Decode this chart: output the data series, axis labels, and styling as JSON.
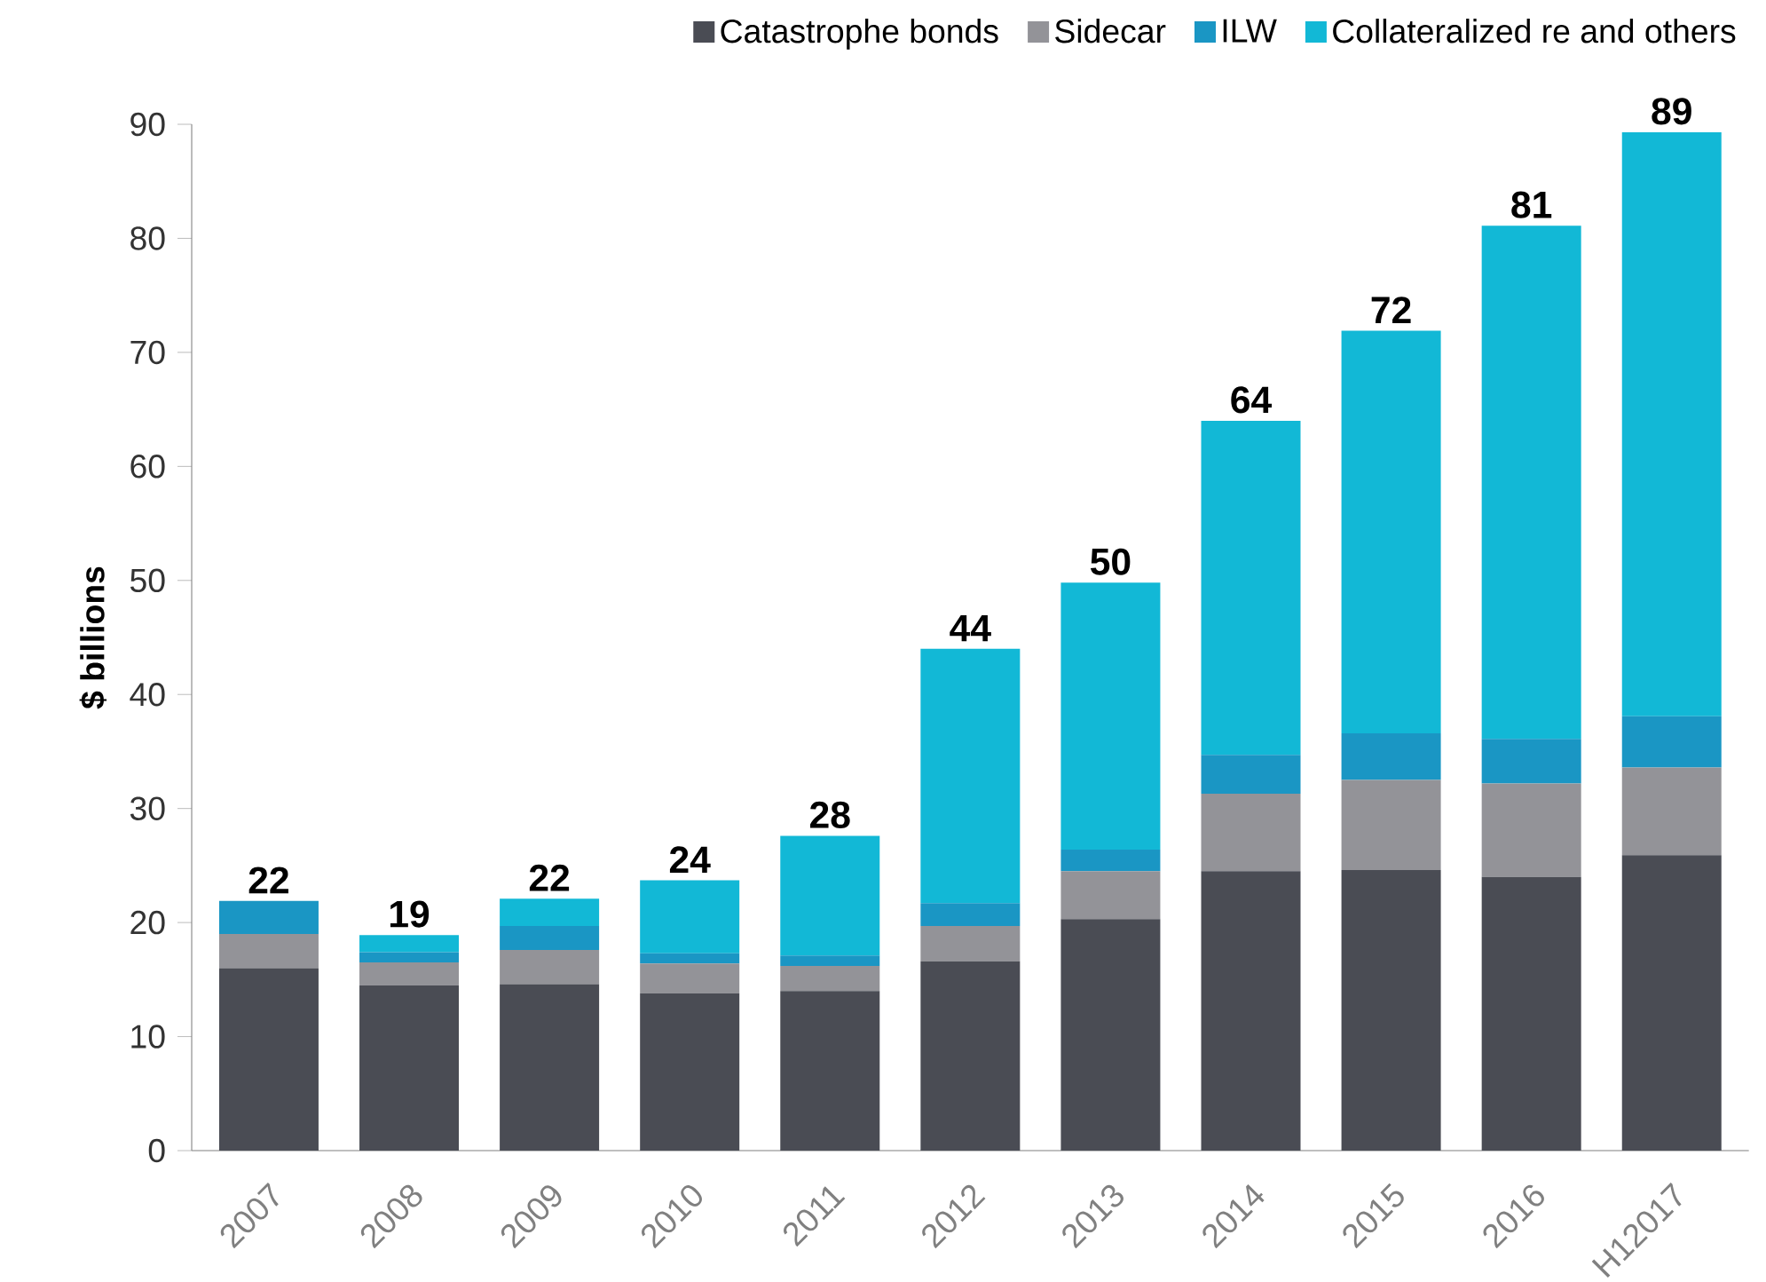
{
  "chart_data": {
    "type": "bar",
    "stacked": true,
    "ylabel": "$ billions",
    "categories": [
      "2007",
      "2008",
      "2009",
      "2010",
      "2011",
      "2012",
      "2013",
      "2014",
      "2015",
      "2016",
      "H12017"
    ],
    "series": [
      {
        "name": "Catastrophe bonds",
        "color": "#4a4c54",
        "values": [
          16.0,
          14.5,
          14.6,
          13.8,
          14.0,
          16.6,
          20.3,
          24.5,
          24.6,
          24.0,
          25.9
        ]
      },
      {
        "name": "Sidecar",
        "color": "#939398",
        "values": [
          3.0,
          2.0,
          3.0,
          2.6,
          2.2,
          3.1,
          4.2,
          6.8,
          7.9,
          8.2,
          7.7
        ]
      },
      {
        "name": "ILW",
        "color": "#1a96c4",
        "values": [
          2.9,
          0.9,
          2.1,
          0.9,
          0.9,
          2.0,
          1.9,
          3.4,
          4.1,
          3.9,
          4.5
        ]
      },
      {
        "name": "Collateralized re and others",
        "color": "#12b8d6",
        "values": [
          0,
          1.5,
          2.4,
          6.4,
          10.5,
          22.3,
          23.4,
          29.3,
          35.3,
          45.0,
          51.2
        ]
      }
    ],
    "totals": [
      "22",
      "19",
      "22",
      "24",
      "28",
      "44",
      "50",
      "64",
      "72",
      "81",
      "89"
    ],
    "ylim": [
      0,
      90
    ],
    "yticks": [
      0,
      10,
      20,
      30,
      40,
      50,
      60,
      70,
      80,
      90
    ],
    "legend": "top right",
    "grid": false
  }
}
